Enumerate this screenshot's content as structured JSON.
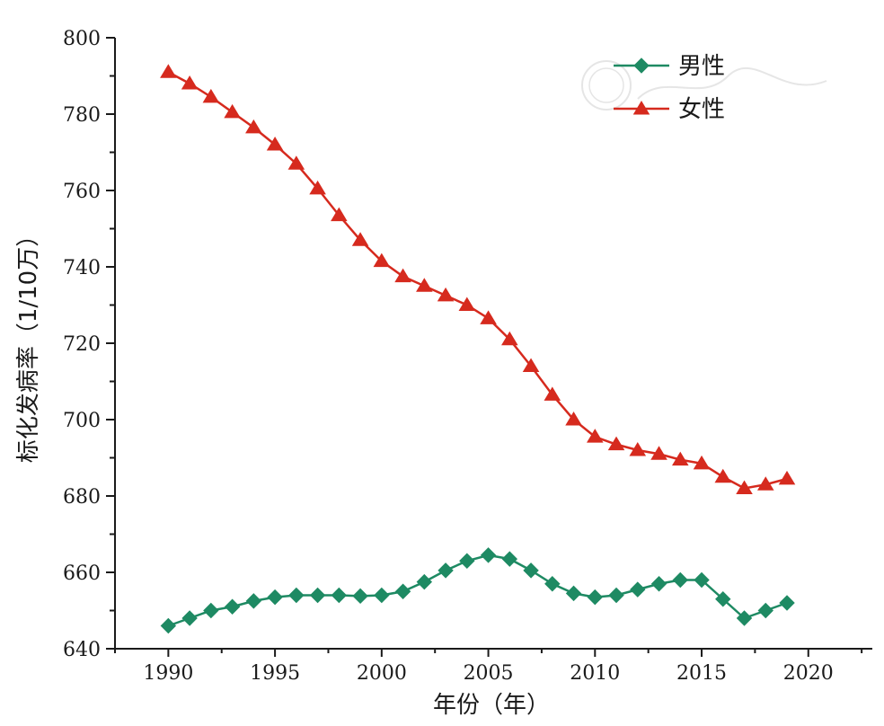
{
  "chart_data": {
    "type": "line",
    "xlabel": "年份（年）",
    "ylabel": "标化发病率（1/10万）",
    "xlim": [
      1987.5,
      2023
    ],
    "ylim": [
      640,
      800
    ],
    "xticks": [
      1990,
      1995,
      2000,
      2005,
      2010,
      2015,
      2020
    ],
    "yticks": [
      640,
      660,
      680,
      700,
      720,
      740,
      760,
      780,
      800
    ],
    "x": [
      1990,
      1991,
      1992,
      1993,
      1994,
      1995,
      1996,
      1997,
      1998,
      1999,
      2000,
      2001,
      2002,
      2003,
      2004,
      2005,
      2006,
      2007,
      2008,
      2009,
      2010,
      2011,
      2012,
      2013,
      2014,
      2015,
      2016,
      2017,
      2018,
      2019
    ],
    "series": [
      {
        "name": "男性",
        "color": "#1e8a63",
        "marker": "diamond",
        "values": [
          646,
          648,
          650,
          651,
          652.5,
          653.5,
          654,
          654,
          654,
          653.8,
          654,
          655,
          657.5,
          660.5,
          663,
          664.5,
          663.5,
          660.5,
          657,
          654.5,
          653.5,
          654,
          655.5,
          657,
          658,
          658,
          653,
          648,
          650,
          652
        ]
      },
      {
        "name": "女性",
        "color": "#d62a1e",
        "marker": "triangle",
        "values": [
          791,
          788,
          784.5,
          780.5,
          776.5,
          772,
          767,
          760.5,
          753.5,
          747,
          741.5,
          737.5,
          735,
          732.5,
          730,
          726.5,
          721,
          714,
          706.5,
          700,
          695.5,
          693.5,
          692,
          691,
          689.5,
          688.5,
          685,
          682,
          683,
          684.5
        ]
      }
    ],
    "legend": {
      "position": "top-right"
    },
    "grid": false
  }
}
